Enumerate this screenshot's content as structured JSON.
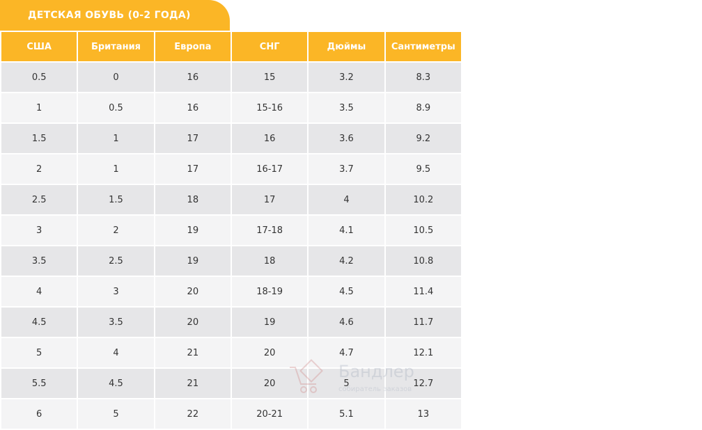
{
  "title": "ДЕТСКАЯ ОБУВЬ (0-2 ГОДА)",
  "colors": {
    "accent": "#fbb626",
    "row_dark": "#e6e6e8",
    "row_light": "#f4f4f5",
    "text": "#333333"
  },
  "table": {
    "headers": [
      "США",
      "Британия",
      "Европа",
      "СНГ",
      "Дюймы",
      "Сантиметры"
    ],
    "rows": [
      [
        "0.5",
        "0",
        "16",
        "15",
        "3.2",
        "8.3"
      ],
      [
        "1",
        "0.5",
        "16",
        "15-16",
        "3.5",
        "8.9"
      ],
      [
        "1.5",
        "1",
        "17",
        "16",
        "3.6",
        "9.2"
      ],
      [
        "2",
        "1",
        "17",
        "16-17",
        "3.7",
        "9.5"
      ],
      [
        "2.5",
        "1.5",
        "18",
        "17",
        "4",
        "10.2"
      ],
      [
        "3",
        "2",
        "19",
        "17-18",
        "4.1",
        "10.5"
      ],
      [
        "3.5",
        "2.5",
        "19",
        "18",
        "4.2",
        "10.8"
      ],
      [
        "4",
        "3",
        "20",
        "18-19",
        "4.5",
        "11.4"
      ],
      [
        "4.5",
        "3.5",
        "20",
        "19",
        "4.6",
        "11.7"
      ],
      [
        "5",
        "4",
        "21",
        "20",
        "4.7",
        "12.1"
      ],
      [
        "5.5",
        "4.5",
        "21",
        "20",
        "5",
        "12.7"
      ],
      [
        "6",
        "5",
        "22",
        "20-21",
        "5.1",
        "13"
      ]
    ]
  },
  "watermark": {
    "name": "Бандлер",
    "subtitle": "собиратель заказов",
    "icon": "cart-icon"
  }
}
